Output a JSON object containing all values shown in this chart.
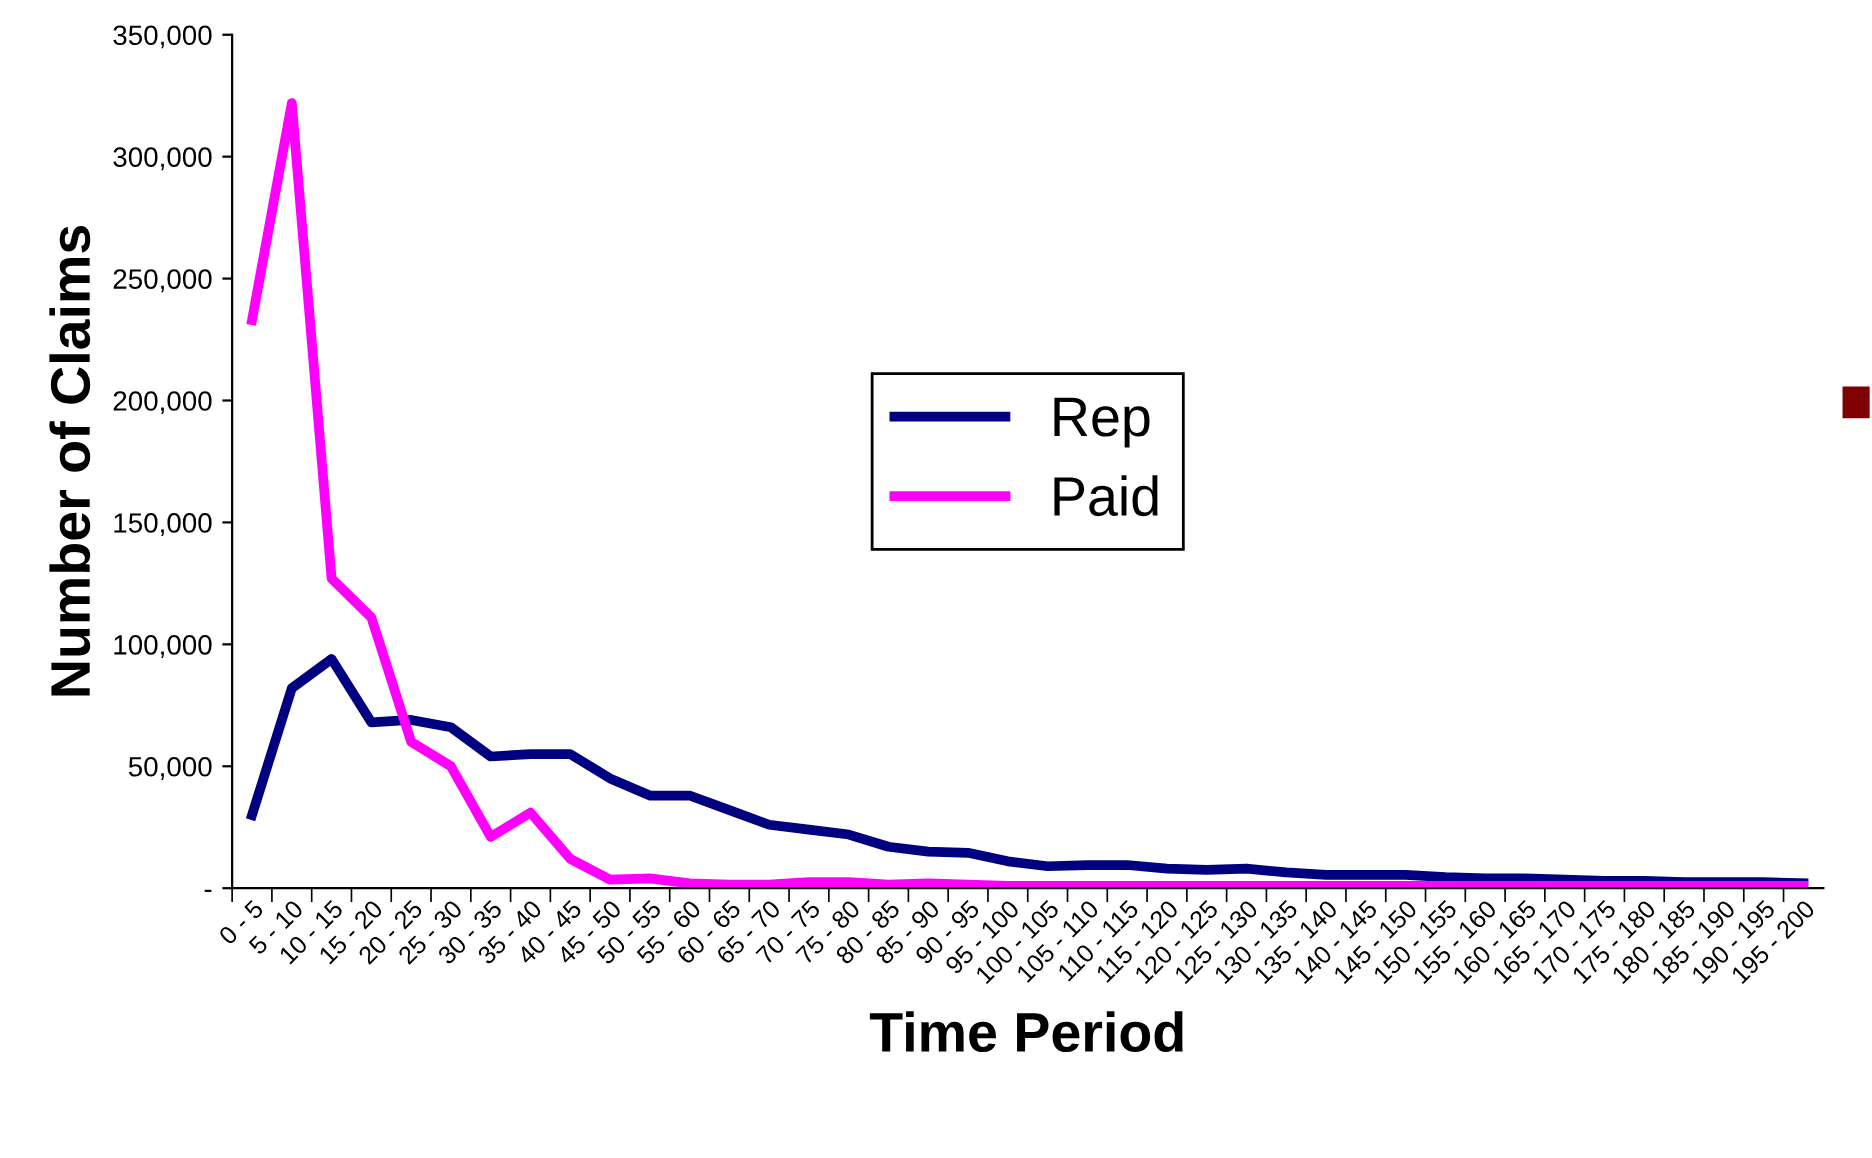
{
  "chart_data": {
    "type": "line",
    "xlabel": "Time Period",
    "ylabel": "Number of Claims",
    "categories": [
      "0 - 5",
      "5 - 10",
      "10 - 15",
      "15 - 20",
      "20 - 25",
      "25 - 30",
      "30 - 35",
      "35 - 40",
      "40 - 45",
      "45 - 50",
      "50 - 55",
      "55 - 60",
      "60 - 65",
      "65 - 70",
      "70 - 75",
      "75 - 80",
      "80 - 85",
      "85 - 90",
      "90 - 95",
      "95 - 100",
      "100 - 105",
      "105 - 110",
      "110 - 115",
      "115 - 120",
      "120 - 125",
      "125 - 130",
      "130 - 135",
      "135 - 140",
      "140 - 145",
      "145 - 150",
      "150 - 155",
      "155 - 160",
      "160 - 165",
      "165 - 170",
      "170 - 175",
      "175 - 180",
      "180 - 185",
      "185 - 190",
      "190 - 195",
      "195 - 200"
    ],
    "series": [
      {
        "name": "Rep",
        "color": "#000080",
        "values": [
          30000,
          82000,
          94000,
          68000,
          69000,
          66000,
          54000,
          55000,
          55000,
          45000,
          38000,
          38000,
          32000,
          26000,
          24000,
          22000,
          17000,
          15000,
          14500,
          11000,
          9000,
          9500,
          9500,
          8000,
          7500,
          8000,
          6500,
          5500,
          5500,
          5500,
          4500,
          4000,
          4000,
          3500,
          3000,
          3000,
          2500,
          2500,
          2500,
          2000
        ]
      },
      {
        "name": "Paid",
        "color": "#ff00ff",
        "values": [
          233000,
          322000,
          127000,
          111000,
          60000,
          50000,
          21000,
          31000,
          12000,
          3500,
          4000,
          2000,
          1500,
          1500,
          2500,
          2500,
          1500,
          2000,
          1500,
          1000,
          1000,
          1000,
          1000,
          1000,
          1000,
          1000,
          1000,
          1000,
          1000,
          1000,
          1000,
          1000,
          1000,
          1000,
          1000,
          1000,
          1000,
          1000,
          1000,
          1000
        ]
      }
    ],
    "ylim": [
      0,
      350000
    ],
    "yticks": [
      {
        "value": 0,
        "label": "-"
      },
      {
        "value": 50000,
        "label": "50,000"
      },
      {
        "value": 100000,
        "label": "100,000"
      },
      {
        "value": 150000,
        "label": "150,000"
      },
      {
        "value": 200000,
        "label": "200,000"
      },
      {
        "value": 250000,
        "label": "250,000"
      },
      {
        "value": 300000,
        "label": "300,000"
      },
      {
        "value": 350000,
        "label": "350,000"
      }
    ],
    "legend": "center",
    "grid": false,
    "marker": "none",
    "line_style": "solid"
  }
}
